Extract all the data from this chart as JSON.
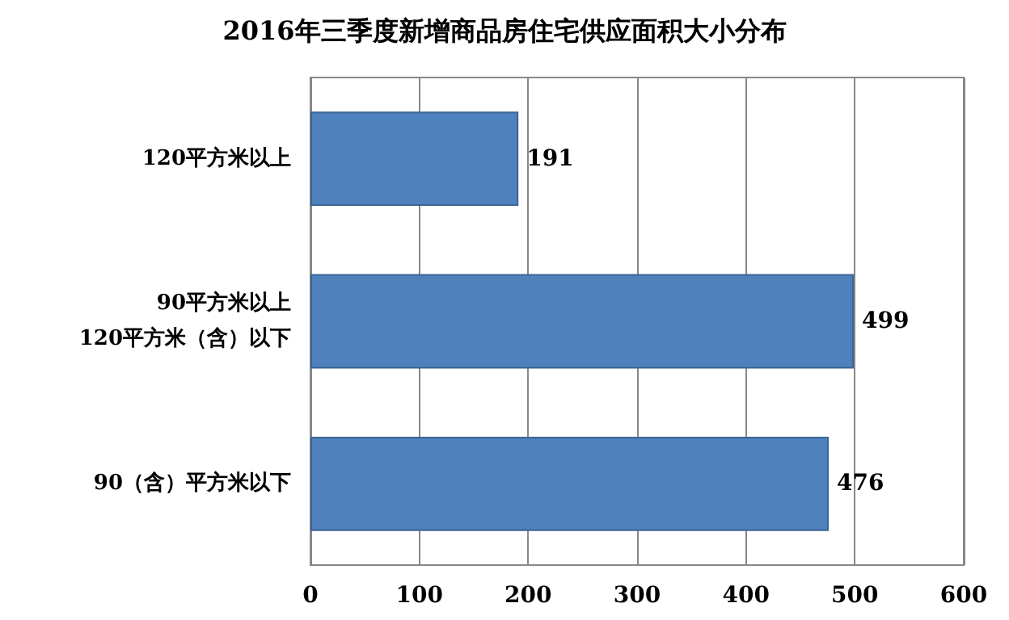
{
  "chart_data": {
    "type": "bar",
    "orientation": "horizontal",
    "title": "2016年三季度新增商品房住宅供应面积大小分布",
    "categories": [
      "120平方米以上",
      "90平方米以上\n120平方米（含）以下",
      "90（含）平方米以下"
    ],
    "values": [
      191,
      499,
      476
    ],
    "color": "#4f81bd",
    "xlim": [
      0,
      600
    ],
    "xticks": [
      0,
      100,
      200,
      300,
      400,
      500,
      600
    ],
    "grid": "x",
    "data_labels": true
  }
}
